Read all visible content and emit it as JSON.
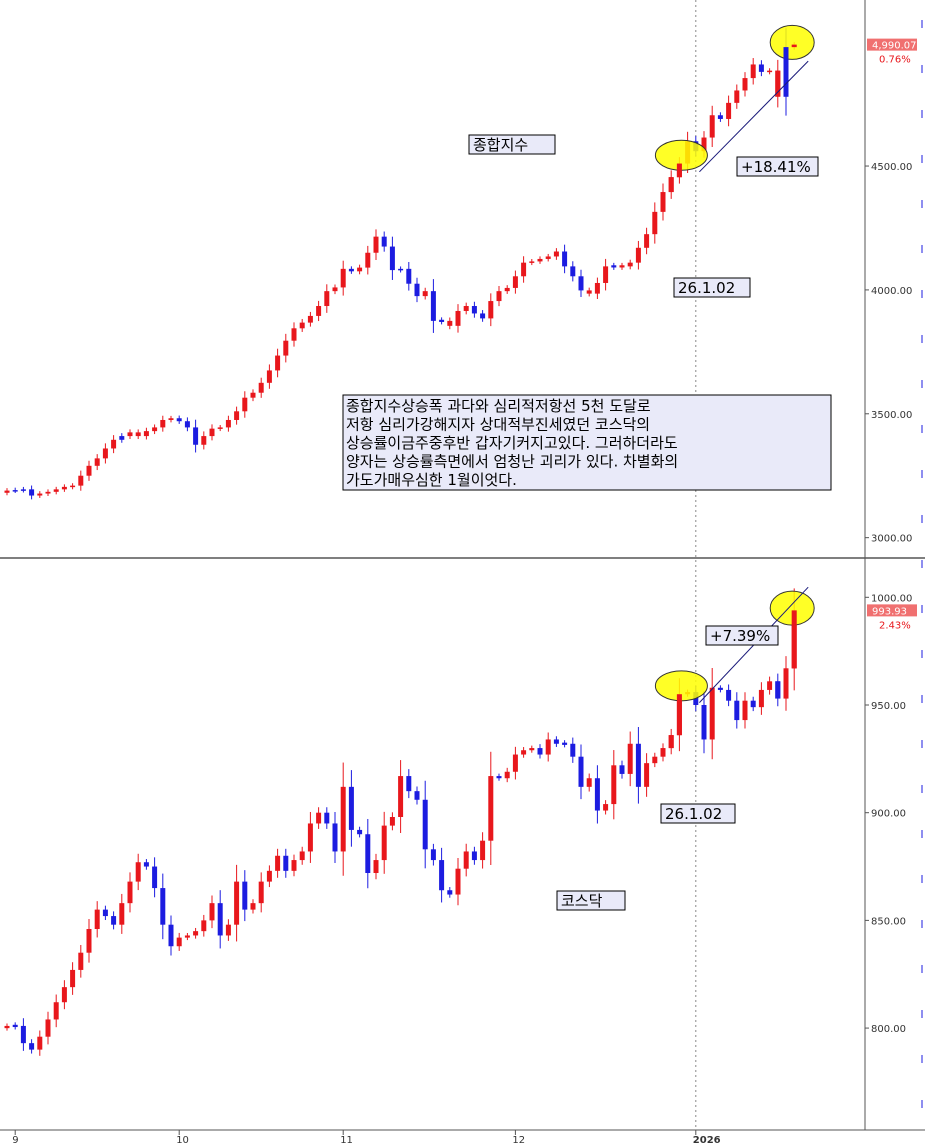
{
  "colors": {
    "up": "#e8171c",
    "down": "#1c1ce0",
    "label_bg": "#e9eaf9",
    "highlight": "#ffff00",
    "price_tag": "#f07070",
    "pct": "#e8171c",
    "axis": "#555555"
  },
  "x_axis": {
    "ticks": [
      {
        "label": "9",
        "index": 1
      },
      {
        "label": "10",
        "index": 21
      },
      {
        "label": "11",
        "index": 41
      },
      {
        "label": "12",
        "index": 62
      },
      {
        "label": "2026",
        "index": 84,
        "bold": true
      }
    ],
    "divider_index": 84
  },
  "chart_data": [
    {
      "type": "candlestick",
      "name": "종합지수",
      "ylim": [
        2930,
        5150
      ],
      "yticks": [
        "3000.00",
        "3500.00",
        "4000.00",
        "4500.00"
      ],
      "ytick_values": [
        3000,
        3500,
        4000,
        4500
      ],
      "last_price": "4,990.07",
      "last_price_value": 4990.07,
      "change_pct": "0.76%",
      "label": "종합지수",
      "note_lines": [
        "종합지수상승폭 과다와 심리적저항선 5천 도달로",
        "저항 심리가강해지자 상대적부진세였던 코스닥의",
        "상승률이금주중후반 갑자기커지고있다. 그러하더라도",
        "양자는 상승률측면에서 엄청난 괴리가 있다. 차별화의",
        "가도가매우심한 1월이엇다."
      ],
      "date_label": "26.1.02",
      "gain_label": "+18.41%",
      "closes": [
        3190,
        3192,
        3195,
        3170,
        3178,
        3185,
        3195,
        3205,
        3210,
        3250,
        3290,
        3320,
        3360,
        3395,
        3410,
        3425,
        3410,
        3430,
        3445,
        3475,
        3482,
        3470,
        3445,
        3375,
        3410,
        3440,
        3445,
        3475,
        3510,
        3565,
        3585,
        3625,
        3675,
        3735,
        3795,
        3845,
        3868,
        3895,
        3935,
        3995,
        4010,
        4085,
        4075,
        4090,
        4150,
        4215,
        4175,
        4080,
        4085,
        4025,
        3975,
        3995,
        3875,
        3875,
        3855,
        3915,
        3935,
        3905,
        3885,
        3955,
        3995,
        4008,
        4055,
        4110,
        4115,
        4125,
        4135,
        4155,
        4095,
        4055,
        3998,
        3985,
        4028,
        4095,
        4095,
        4095,
        4110,
        4170,
        4225,
        4315,
        4395,
        4455,
        4510,
        4600,
        4560,
        4615,
        4705,
        4690,
        4755,
        4805,
        4855,
        4910,
        4880,
        4885,
        4780,
        4980,
        4990.07
      ],
      "shape": [
        1,
        0,
        0,
        0,
        1,
        1,
        1,
        1,
        1,
        1,
        1,
        1,
        1,
        1,
        0,
        1,
        1,
        1,
        1,
        1,
        1,
        0,
        0,
        0,
        1,
        1,
        1,
        1,
        1,
        1,
        1,
        1,
        1,
        1,
        1,
        1,
        1,
        1,
        1,
        1,
        1,
        1,
        0,
        1,
        1,
        1,
        0,
        0,
        0,
        0,
        0,
        1,
        0,
        0,
        1,
        1,
        1,
        0,
        0,
        1,
        1,
        1,
        1,
        1,
        1,
        1,
        1,
        1,
        0,
        0,
        0,
        1,
        1,
        1,
        0,
        1,
        1,
        1,
        1,
        1,
        1,
        1,
        1,
        1,
        0,
        1,
        1,
        0,
        1,
        1,
        1,
        1,
        0,
        1,
        1,
        0,
        1
      ]
    },
    {
      "type": "candlestick",
      "name": "코스닥",
      "ylim": [
        755,
        1015
      ],
      "yticks": [
        "800.00",
        "850.00",
        "900.00",
        "950.00",
        "1000.00"
      ],
      "ytick_values": [
        800,
        850,
        900,
        950,
        1000
      ],
      "last_price": "993.93",
      "last_price_value": 993.93,
      "change_pct": "2.43%",
      "label": "코스닥",
      "date_label": "26.1.02",
      "gain_label": "+7.39%",
      "closes": [
        801,
        801,
        793,
        790,
        796,
        804,
        812,
        819,
        827,
        835,
        846,
        855,
        852,
        848,
        858,
        868,
        877,
        875,
        865,
        848,
        838,
        842,
        843,
        845,
        850,
        858,
        843,
        848,
        868,
        855,
        858,
        868,
        873,
        880,
        873,
        878,
        882,
        895,
        900,
        895,
        882,
        912,
        892,
        890,
        872,
        878,
        894,
        898,
        917,
        910,
        906,
        883,
        878,
        864,
        862,
        874,
        882,
        878,
        887,
        917,
        916,
        919,
        927,
        929,
        930,
        927,
        934,
        932,
        932,
        926,
        912,
        916,
        901,
        904,
        922,
        918,
        932,
        912,
        923,
        926,
        930,
        936,
        955,
        956,
        950,
        934,
        958,
        957,
        952,
        943,
        952,
        949,
        957,
        961,
        953,
        967,
        993.93
      ],
      "shape": [
        1,
        0,
        0,
        0,
        1,
        1,
        1,
        1,
        1,
        1,
        1,
        1,
        0,
        0,
        1,
        1,
        1,
        0,
        0,
        0,
        0,
        1,
        1,
        1,
        1,
        1,
        0,
        1,
        1,
        0,
        1,
        1,
        1,
        1,
        0,
        1,
        1,
        1,
        1,
        0,
        0,
        1,
        0,
        0,
        0,
        1,
        1,
        1,
        1,
        0,
        0,
        0,
        0,
        0,
        0,
        1,
        1,
        0,
        1,
        1,
        0,
        1,
        1,
        1,
        1,
        0,
        1,
        0,
        0,
        0,
        0,
        1,
        0,
        1,
        1,
        0,
        1,
        0,
        1,
        1,
        1,
        1,
        1,
        1,
        0,
        0,
        1,
        0,
        0,
        0,
        1,
        0,
        1,
        1,
        0,
        1,
        1
      ]
    }
  ]
}
